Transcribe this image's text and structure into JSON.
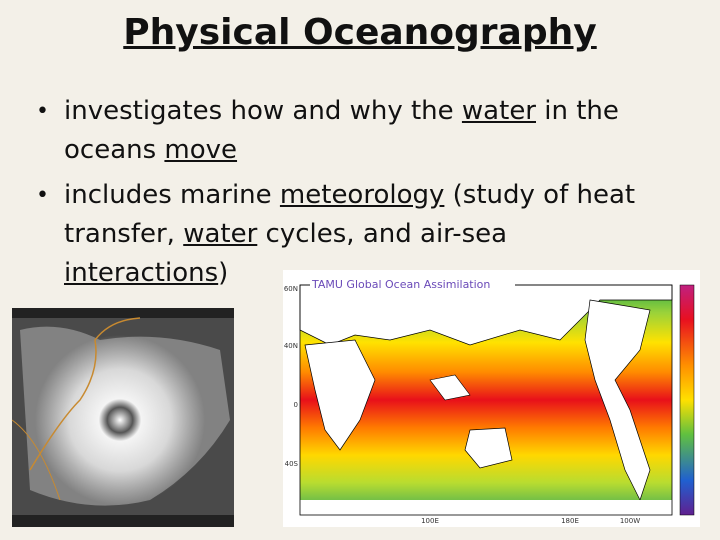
{
  "title": "Physical Oceanography",
  "bullets": [
    [
      {
        "text": "investigates how and why the "
      },
      {
        "text": "water",
        "underline": true
      },
      {
        "text": " in the oceans "
      },
      {
        "text": "move",
        "underline": true
      }
    ],
    [
      {
        "text": "includes marine "
      },
      {
        "text": "meteorology",
        "underline": true
      },
      {
        "text": " (study of heat transfer, "
      },
      {
        "text": "water",
        "underline": true
      },
      {
        "text": " cycles, and air-sea "
      },
      {
        "text": "interactions",
        "underline": true
      },
      {
        "text": ")"
      }
    ]
  ],
  "map": {
    "title": "TAMU Global Ocean Assimilation",
    "lat_labels": [
      "60N",
      "40N",
      "0",
      "40S"
    ],
    "lon_labels": [
      "100E",
      "180E",
      "100W"
    ]
  }
}
